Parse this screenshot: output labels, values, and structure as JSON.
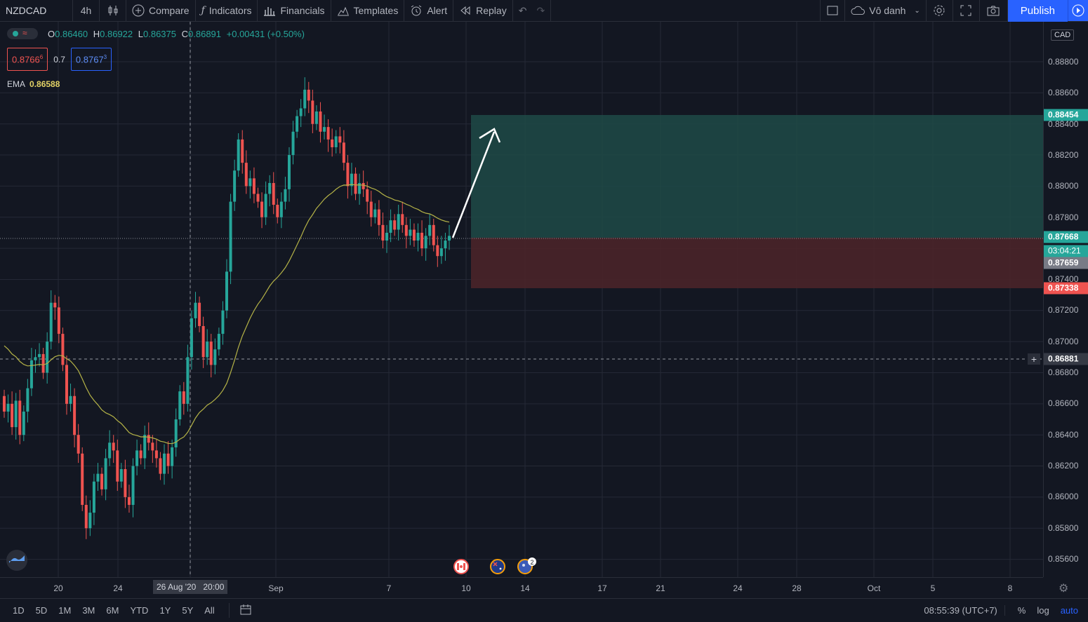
{
  "toolbar": {
    "symbol": "NZDCAD",
    "interval": "4h",
    "compare": "Compare",
    "indicators": "Indicators",
    "financials": "Financials",
    "templates": "Templates",
    "alert": "Alert",
    "replay": "Replay",
    "layout_name": "Vô danh",
    "publish": "Publish"
  },
  "legend": {
    "open_label": "O",
    "open": "0.86460",
    "high_label": "H",
    "high": "0.86922",
    "low_label": "L",
    "low": "0.86375",
    "close_label": "C",
    "close": "0.86891",
    "change": "+0.00431 (+0.50%)",
    "sell_price": "0.8766",
    "sell_sup": "6",
    "spread": "0.7",
    "buy_price": "0.8767",
    "buy_sup": "3",
    "ema_label": "EMA",
    "ema_value": "0.86588"
  },
  "price_axis": {
    "currency": "CAD",
    "ticks": [
      "0.88800",
      "0.88600",
      "0.88400",
      "0.88200",
      "0.88000",
      "0.87800",
      "0.87400",
      "0.87200",
      "0.87000",
      "0.86800",
      "0.86600",
      "0.86400",
      "0.86200",
      "0.86000",
      "0.85800",
      "0.85600"
    ],
    "tags": {
      "target": "0.88454",
      "entry": "0.87668",
      "countdown": "03:04:21",
      "last": "0.87659",
      "stop": "0.87338",
      "crosshair": "0.86881"
    }
  },
  "time_axis": {
    "ticks": [
      "20",
      "24",
      "Sep",
      "7",
      "10",
      "14",
      "17",
      "21",
      "24",
      "28",
      "Oct",
      "5",
      "8"
    ],
    "crosshair_label": "26 Aug '20",
    "crosshair_time": "20:00"
  },
  "events": {
    "badge_count": "2"
  },
  "bottombar": {
    "ranges": [
      "1D",
      "5D",
      "1M",
      "3M",
      "6M",
      "YTD",
      "1Y",
      "5Y",
      "All"
    ],
    "clock": "08:55:39 (UTC+7)",
    "percent": "%",
    "log": "log",
    "auto": "auto"
  },
  "colors": {
    "up": "#26a69a",
    "down": "#ef5350",
    "ema": "#b5b347",
    "profit_zone": "#1f4a47",
    "loss_zone": "#4a2429",
    "accent": "#2962ff"
  }
}
